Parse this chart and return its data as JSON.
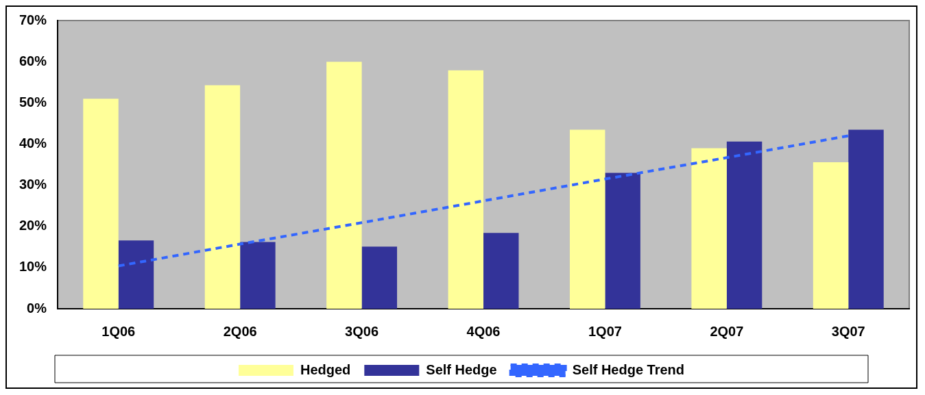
{
  "chart_data": {
    "type": "bar",
    "categories": [
      "1Q06",
      "2Q06",
      "3Q06",
      "4Q06",
      "1Q07",
      "2Q07",
      "3Q07"
    ],
    "series": [
      {
        "name": "Hedged",
        "color": "#ffff99",
        "values": [
          51,
          54.3,
          60,
          57.9,
          43.5,
          39,
          35.6
        ]
      },
      {
        "name": "Self Hedge",
        "color": "#333399",
        "values": [
          16.6,
          16.2,
          15.1,
          18.4,
          33,
          40.6,
          43.5
        ]
      },
      {
        "name": "Self Hedge Trend",
        "type": "line",
        "color": "#3366ff",
        "line_style": "dashed",
        "marker": "none",
        "values": [
          10.4,
          15.7,
          20.9,
          26.2,
          31.5,
          36.7,
          42
        ]
      }
    ],
    "ylim": [
      0,
      70
    ],
    "yticks": [
      {
        "value": 0,
        "label": "0%"
      },
      {
        "value": 10,
        "label": "10%"
      },
      {
        "value": 20,
        "label": "20%"
      },
      {
        "value": 30,
        "label": "30%"
      },
      {
        "value": 40,
        "label": "40%"
      },
      {
        "value": 50,
        "label": "50%"
      },
      {
        "value": 60,
        "label": "60%"
      },
      {
        "value": 70,
        "label": "70%"
      }
    ],
    "grid": false,
    "legend": "bottom"
  }
}
